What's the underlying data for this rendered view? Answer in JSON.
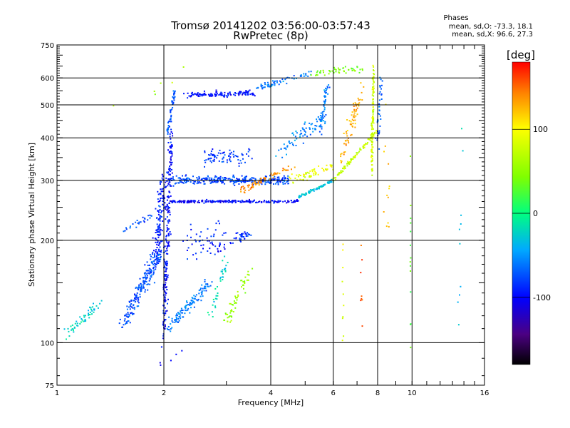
{
  "header": {
    "title_line1": "Tromsø 20141202 03:56:00-03:57:43",
    "title_line2": "RwPretec (8p)"
  },
  "stats": {
    "label": "Phases",
    "line_o": "mean, sd,O: -73.3, 18.1",
    "line_x": "mean, sd,X:  96.6, 27.3"
  },
  "colorbar": {
    "unit_label": "[deg]",
    "ticks": [
      {
        "label": "100",
        "value": 100
      },
      {
        "label": "0",
        "value": 0
      },
      {
        "label": "-100",
        "value": -100
      }
    ],
    "range": [
      -180,
      180
    ]
  },
  "chart_data": {
    "type": "scatter",
    "title": "Tromsø 20141202 03:56:00-03:57:43",
    "subtitle": "RwPretec (8p)",
    "xlabel": "Frequency [MHz]",
    "ylabel": "Stationary phase Virtual Height [km]",
    "x_scale": "log",
    "y_scale": "log",
    "xlim": [
      1,
      16
    ],
    "ylim": [
      75,
      750
    ],
    "x_ticks": [
      {
        "value": 1,
        "label": "1"
      },
      {
        "value": 2,
        "label": "2"
      },
      {
        "value": 4,
        "label": "4"
      },
      {
        "value": 6,
        "label": "6"
      },
      {
        "value": 8,
        "label": "8"
      },
      {
        "value": 10,
        "label": "10"
      },
      {
        "value": 16,
        "label": "16"
      }
    ],
    "y_ticks": [
      {
        "value": 75,
        "label": "75"
      },
      {
        "value": 100,
        "label": "100"
      },
      {
        "value": 200,
        "label": "200"
      },
      {
        "value": 300,
        "label": "300"
      },
      {
        "value": 400,
        "label": "400"
      },
      {
        "value": 500,
        "label": "500"
      },
      {
        "value": 600,
        "label": "600"
      },
      {
        "value": 750,
        "label": "750"
      }
    ],
    "x_grid": [
      2,
      4,
      6,
      8,
      10
    ],
    "y_grid": [
      100,
      200,
      300,
      400,
      500,
      600
    ],
    "grid": true,
    "color_by": "phase [deg]",
    "colormap": "rainbow",
    "clusters": [
      {
        "x0": 1.05,
        "y0": 105,
        "x1": 1.32,
        "y1": 130,
        "spread_x": 0.03,
        "spread_y": 0.05,
        "phase": -25,
        "n": 55
      },
      {
        "x0": 1.55,
        "y0": 215,
        "x1": 1.85,
        "y1": 235,
        "spread_x": 0.02,
        "spread_y": 0.03,
        "phase": -70,
        "n": 25
      },
      {
        "x0": 1.55,
        "y0": 115,
        "x1": 1.95,
        "y1": 185,
        "spread_x": 0.05,
        "spread_y": 0.08,
        "phase": -75,
        "n": 220
      },
      {
        "x0": 1.9,
        "y0": 180,
        "x1": 2.0,
        "y1": 300,
        "spread_x": 0.04,
        "spread_y": 0.1,
        "phase": -90,
        "n": 140
      },
      {
        "x0": 2.0,
        "y0": 110,
        "x1": 2.1,
        "y1": 400,
        "spread_x": 0.02,
        "spread_y": 0.22,
        "phase": -95,
        "n": 240
      },
      {
        "x0": 2.05,
        "y0": 110,
        "x1": 2.7,
        "y1": 150,
        "spread_x": 0.04,
        "spread_y": 0.06,
        "phase": -60,
        "n": 120
      },
      {
        "x0": 2.1,
        "y0": 260,
        "x1": 4.8,
        "y1": 260,
        "spread_x": 0.01,
        "spread_y": 0.015,
        "phase": -100,
        "n": 200
      },
      {
        "x0": 4.8,
        "y0": 268,
        "x1": 6.0,
        "y1": 300,
        "spread_x": 0.01,
        "spread_y": 0.015,
        "phase": -30,
        "n": 80
      },
      {
        "x0": 6.0,
        "y0": 300,
        "x1": 8.0,
        "y1": 420,
        "spread_x": 0.01,
        "spread_y": 0.02,
        "phase": 75,
        "n": 90
      },
      {
        "x0": 2.1,
        "y0": 300,
        "x1": 4.5,
        "y1": 300,
        "spread_x": 0.02,
        "spread_y": 0.04,
        "phase": -75,
        "n": 300
      },
      {
        "x0": 3.3,
        "y0": 280,
        "x1": 4.6,
        "y1": 330,
        "spread_x": 0.03,
        "spread_y": 0.04,
        "phase": 140,
        "n": 70
      },
      {
        "x0": 4.5,
        "y0": 300,
        "x1": 6.0,
        "y1": 330,
        "spread_x": 0.03,
        "spread_y": 0.05,
        "phase": 90,
        "n": 60
      },
      {
        "x0": 2.6,
        "y0": 350,
        "x1": 3.6,
        "y1": 350,
        "spread_x": 0.03,
        "spread_y": 0.08,
        "phase": -80,
        "n": 80
      },
      {
        "x0": 2.05,
        "y0": 420,
        "x1": 2.15,
        "y1": 560,
        "spread_x": 0.01,
        "spread_y": 0.06,
        "phase": -70,
        "n": 50
      },
      {
        "x0": 2.3,
        "y0": 535,
        "x1": 3.6,
        "y1": 540,
        "spread_x": 0.03,
        "spread_y": 0.03,
        "phase": -95,
        "n": 120
      },
      {
        "x0": 3.6,
        "y0": 560,
        "x1": 5.2,
        "y1": 620,
        "spread_x": 0.02,
        "spread_y": 0.03,
        "phase": -60,
        "n": 60
      },
      {
        "x0": 5.2,
        "y0": 620,
        "x1": 7.4,
        "y1": 640,
        "spread_x": 0.03,
        "spread_y": 0.03,
        "phase": 40,
        "n": 50
      },
      {
        "x0": 7.7,
        "y0": 330,
        "x1": 7.8,
        "y1": 640,
        "spread_x": 0.01,
        "spread_y": 0.12,
        "phase": 80,
        "n": 110
      },
      {
        "x0": 8.0,
        "y0": 380,
        "x1": 8.2,
        "y1": 600,
        "spread_x": 0.02,
        "spread_y": 0.12,
        "phase": -70,
        "n": 40
      },
      {
        "x0": 5.5,
        "y0": 420,
        "x1": 5.8,
        "y1": 580,
        "spread_x": 0.02,
        "spread_y": 0.1,
        "phase": -60,
        "n": 50
      },
      {
        "x0": 6.3,
        "y0": 340,
        "x1": 7.2,
        "y1": 560,
        "spread_x": 0.03,
        "spread_y": 0.08,
        "phase": 130,
        "n": 70
      },
      {
        "x0": 4.2,
        "y0": 360,
        "x1": 5.6,
        "y1": 460,
        "spread_x": 0.04,
        "spread_y": 0.08,
        "phase": -55,
        "n": 70
      },
      {
        "x0": 3.1,
        "y0": 200,
        "x1": 3.5,
        "y1": 210,
        "spread_x": 0.03,
        "spread_y": 0.05,
        "phase": -85,
        "n": 35
      },
      {
        "x0": 2.7,
        "y0": 120,
        "x1": 3.0,
        "y1": 175,
        "spread_x": 0.03,
        "spread_y": 0.06,
        "phase": -20,
        "n": 35
      },
      {
        "x0": 3.0,
        "y0": 115,
        "x1": 3.5,
        "y1": 165,
        "spread_x": 0.04,
        "spread_y": 0.04,
        "phase": 55,
        "n": 55
      },
      {
        "x0": 2.3,
        "y0": 200,
        "x1": 3.0,
        "y1": 200,
        "spread_x": 0.05,
        "spread_y": 0.15,
        "phase": -90,
        "n": 60
      },
      {
        "x0": 9.9,
        "y0": 90,
        "x1": 9.9,
        "y1": 380,
        "spread_x": 0.003,
        "spread_y": 0.25,
        "phase": 30,
        "n": 14
      },
      {
        "x0": 8.5,
        "y0": 200,
        "x1": 8.5,
        "y1": 600,
        "spread_x": 0.05,
        "spread_y": 0.2,
        "phase": 120,
        "n": 12
      },
      {
        "x0": 6.4,
        "y0": 100,
        "x1": 6.4,
        "y1": 190,
        "spread_x": 0.01,
        "spread_y": 0.1,
        "phase": 90,
        "n": 10
      },
      {
        "x0": 7.2,
        "y0": 90,
        "x1": 7.2,
        "y1": 200,
        "spread_x": 0.02,
        "spread_y": 0.15,
        "phase": 150,
        "n": 8
      },
      {
        "x0": 13.5,
        "y0": 120,
        "x1": 14.0,
        "y1": 600,
        "spread_x": 0.01,
        "spread_y": 0.3,
        "phase": -40,
        "n": 10
      },
      {
        "x0": 1.4,
        "y0": 480,
        "x1": 2.6,
        "y1": 660,
        "spread_x": 0.1,
        "spread_y": 0.1,
        "phase": 60,
        "n": 6
      },
      {
        "x0": 1.9,
        "y0": 85,
        "x1": 2.3,
        "y1": 95,
        "spread_x": 0.03,
        "spread_y": 0.03,
        "phase": -100,
        "n": 5
      }
    ]
  }
}
